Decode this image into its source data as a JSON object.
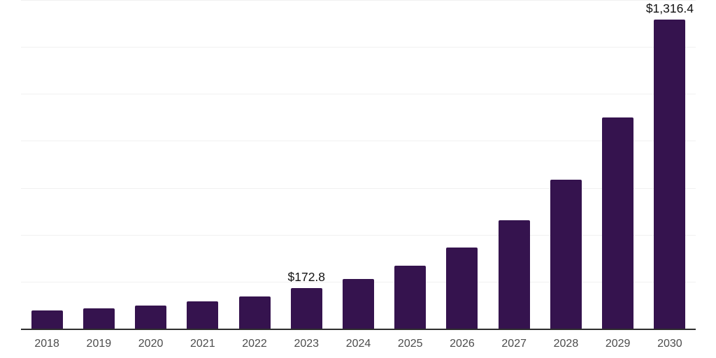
{
  "chart_data": {
    "type": "bar",
    "title": "",
    "xlabel": "",
    "ylabel": "",
    "categories": [
      "2018",
      "2019",
      "2020",
      "2021",
      "2022",
      "2023",
      "2024",
      "2025",
      "2026",
      "2027",
      "2028",
      "2029",
      "2030"
    ],
    "values": [
      78.3,
      87.3,
      97.4,
      116.2,
      137.0,
      172.8,
      211.5,
      268.1,
      346.4,
      462.6,
      633.6,
      898.7,
      1316.4
    ],
    "data_labels": [
      {
        "category": "2023",
        "text": "$172.8"
      },
      {
        "category": "2030",
        "text": "$1,316.4"
      }
    ],
    "ylim": [
      0,
      1400
    ],
    "gridline_step": 200,
    "grid": true,
    "legend": "none",
    "y_axis_ticks_visible": false,
    "colors": {
      "bar": "#35134e",
      "axis": "#2e2e2e",
      "gridline": "#f1f1f1",
      "tick_label": "#4c4c4c",
      "value_label": "#111111",
      "background": "#ffffff"
    }
  }
}
